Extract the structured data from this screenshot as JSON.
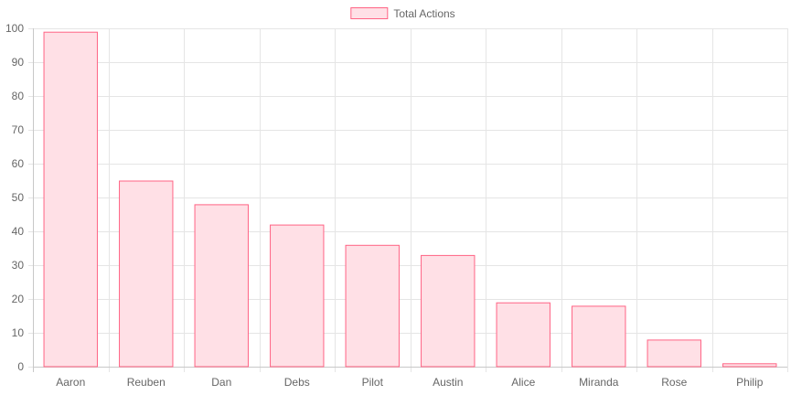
{
  "chart_data": {
    "type": "bar",
    "categories": [
      "Aaron",
      "Reuben",
      "Dan",
      "Debs",
      "Pilot",
      "Austin",
      "Alice",
      "Miranda",
      "Rose",
      "Philip"
    ],
    "series": [
      {
        "name": "Total Actions",
        "values": [
          99,
          55,
          48,
          42,
          36,
          33,
          19,
          18,
          8,
          1
        ]
      }
    ],
    "ylim": [
      0,
      100
    ],
    "yticks": [
      0,
      10,
      20,
      30,
      40,
      50,
      60,
      70,
      80,
      90,
      100
    ],
    "grid": true,
    "legend_position": "top-center",
    "colors": {
      "bar_fill": "#ffe0e6",
      "bar_border": "#ff6384",
      "grid": "#e5e5e5",
      "axis": "#c8c8c8",
      "text": "#666666"
    }
  }
}
